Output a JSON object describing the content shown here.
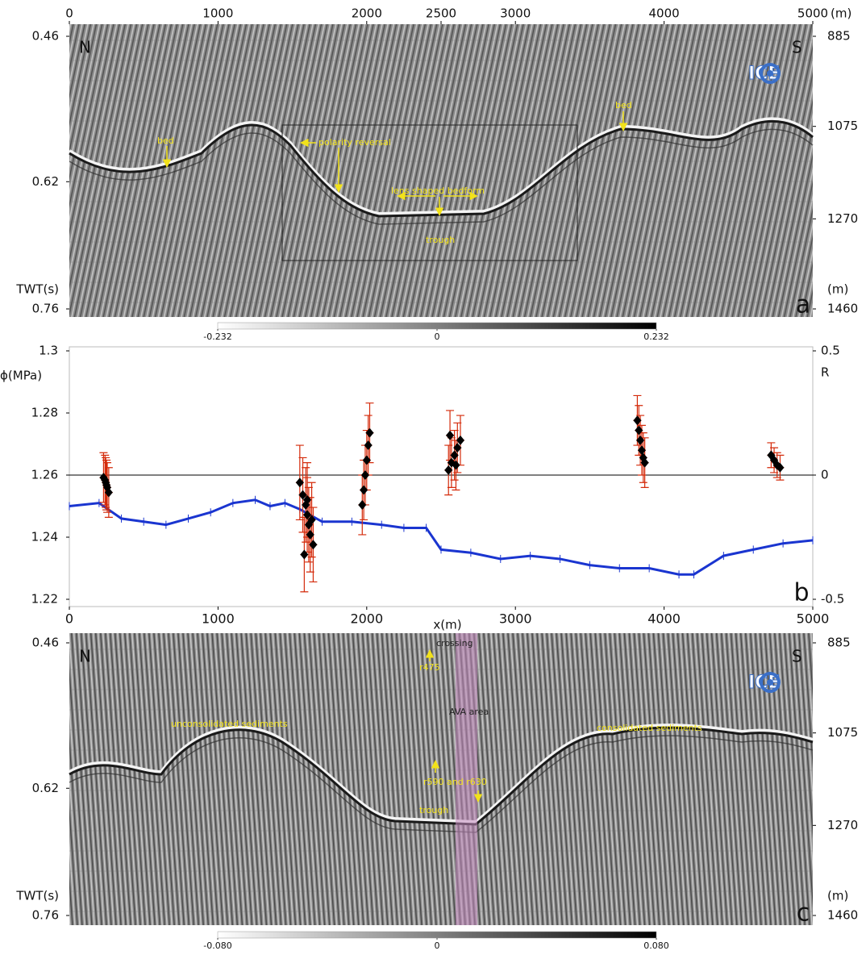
{
  "chart_data": [
    {
      "type": "seismic",
      "xlim": [
        0,
        5000
      ],
      "xticks": [
        0,
        1000,
        2000,
        2500,
        3000,
        4000,
        5000
      ],
      "xlabel": "(m)",
      "ylim": [
        0.46,
        0.76
      ],
      "yticks": [
        0.46,
        0.62,
        0.76
      ],
      "ylabel": "TWT(s)",
      "y2lim": [
        885,
        1460
      ],
      "y2ticks": [
        885,
        1075,
        1270,
        1460
      ],
      "y2label": "(m)",
      "panel_label": "a",
      "compass": [
        "N",
        "S"
      ],
      "logo": "ICE",
      "annotations": [
        "bed",
        "polarity reversal",
        "lens shaped bedform",
        "trough",
        "bed"
      ],
      "colorbar_ticks": [
        -0.232,
        0,
        0.232
      ]
    },
    {
      "type": "errorbar",
      "xlim": [
        0,
        5000
      ],
      "xticks": [
        0,
        1000,
        2000,
        3000,
        4000,
        5000
      ],
      "xlabel": "x(m)",
      "ylim": [
        1.22,
        1.3
      ],
      "yticks": [
        1.22,
        1.24,
        1.26,
        1.28,
        1.3
      ],
      "ylabel": "ϕ(MPa)",
      "y2lim": [
        -0.5,
        0.5
      ],
      "y2ticks": [
        -0.5,
        0,
        0.5
      ],
      "y2label": "R",
      "panel_label": "b",
      "series": [
        {
          "color": "#1a35d0",
          "x": [
            0,
            200,
            350,
            500,
            650,
            800,
            950,
            1100,
            1250,
            1350,
            1450,
            1550,
            1700,
            1900,
            2100,
            2250,
            2400,
            2500,
            2700,
            2900,
            3100,
            3300,
            3500,
            3700,
            3900,
            4100,
            4200,
            4400,
            4600,
            4800,
            5000
          ],
          "values": [
            1.25,
            1.251,
            1.246,
            1.245,
            1.244,
            1.246,
            1.248,
            1.251,
            1.252,
            1.25,
            1.251,
            1.249,
            1.245,
            1.245,
            1.244,
            1.243,
            1.243,
            1.236,
            1.235,
            1.233,
            1.234,
            1.233,
            1.231,
            1.23,
            1.23,
            1.228,
            1.228,
            1.234,
            1.236,
            1.238,
            1.239
          ]
        },
        {
          "axis": "y2",
          "color": "#000000",
          "error_color": "#d42a0a",
          "x": [
            230,
            245,
            255,
            265,
            250,
            240,
            1550,
            1570,
            1590,
            1600,
            1610,
            1620,
            1640,
            1580,
            1600,
            1630,
            1970,
            1980,
            1990,
            2000,
            2010,
            2020,
            2550,
            2570,
            2590,
            2610,
            2630,
            2560,
            2600,
            3820,
            3830,
            3840,
            3850,
            3860,
            3870,
            4720,
            4740,
            4760,
            4780
          ],
          "values": [
            -0.01,
            -0.03,
            -0.05,
            -0.07,
            -0.04,
            -0.02,
            -0.03,
            -0.08,
            -0.12,
            -0.16,
            -0.2,
            -0.24,
            -0.28,
            -0.32,
            -0.1,
            -0.18,
            -0.12,
            -0.06,
            0,
            0.06,
            0.12,
            0.17,
            0.02,
            0.05,
            0.08,
            0.11,
            0.14,
            0.16,
            0.04,
            0.22,
            0.18,
            0.14,
            0.1,
            0.07,
            0.05,
            0.08,
            0.06,
            0.04,
            0.03
          ],
          "errors": [
            0.1,
            0.1,
            0.1,
            0.1,
            0.1,
            0.1,
            0.15,
            0.15,
            0.15,
            0.15,
            0.15,
            0.15,
            0.15,
            0.15,
            0.15,
            0.15,
            0.12,
            0.12,
            0.12,
            0.12,
            0.12,
            0.12,
            0.1,
            0.1,
            0.1,
            0.1,
            0.1,
            0.1,
            0.1,
            0.1,
            0.1,
            0.1,
            0.1,
            0.1,
            0.1,
            0.05,
            0.05,
            0.05,
            0.05
          ]
        }
      ]
    },
    {
      "type": "seismic",
      "ylim": [
        0.46,
        0.76
      ],
      "yticks": [
        0.46,
        0.62,
        0.76
      ],
      "ylabel": "TWT(s)",
      "y2lim": [
        885,
        1460
      ],
      "y2ticks": [
        885,
        1075,
        1270,
        1460
      ],
      "y2label": "(m)",
      "panel_label": "c",
      "compass": [
        "N",
        "S"
      ],
      "logo": "ICE",
      "annotations": [
        "crossing",
        "r475",
        "AVA area",
        "unconsolidated sediments",
        "consolidated sediments",
        "r590 and r630",
        "trough"
      ],
      "colorbar_ticks": [
        {
          "value": -0.08,
          "label": "-0.080"
        },
        0,
        {
          "value": 0.08,
          "label": "0.080"
        }
      ]
    }
  ]
}
